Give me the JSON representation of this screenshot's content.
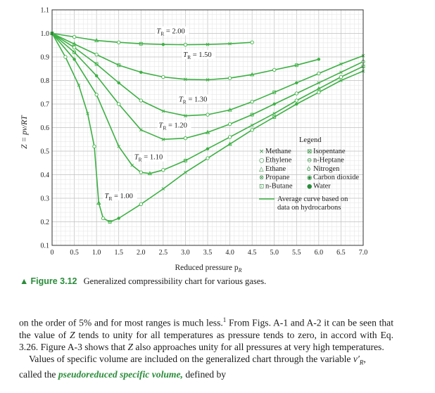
{
  "chart_data": {
    "type": "line",
    "title": "",
    "xlabel": "Reduced pressure p",
    "xlabel_sub": "R",
    "ylabel": "Z = pv/RT",
    "xlim": [
      0,
      7.0
    ],
    "ylim": [
      0.1,
      1.1
    ],
    "xticks": [
      "0",
      "0.5",
      "1.0",
      "1.5",
      "2.0",
      "2.5",
      "3.0",
      "3.5",
      "4.0",
      "4.5",
      "5.0",
      "5.5",
      "6.0",
      "6.5",
      "7.0"
    ],
    "yticks": [
      "0.1",
      "0.2",
      "0.3",
      "0.4",
      "0.5",
      "0.6",
      "0.7",
      "0.8",
      "0.9",
      "1.0",
      "1.1"
    ],
    "grid": true,
    "curve_color": "#3cb043",
    "series": [
      {
        "label": "T",
        "label_sub": "R",
        "label_value": " = 2.00",
        "x": [
          0,
          0.5,
          1.0,
          1.5,
          2.0,
          2.5,
          3.0,
          3.5,
          4.0,
          4.5
        ],
        "y": [
          1.0,
          0.985,
          0.97,
          0.962,
          0.956,
          0.953,
          0.952,
          0.953,
          0.956,
          0.962
        ]
      },
      {
        "label": "T",
        "label_sub": "R",
        "label_value": " = 1.50",
        "x": [
          0,
          0.5,
          1.0,
          1.5,
          2.0,
          2.5,
          3.0,
          3.5,
          4.0,
          4.5,
          5.0,
          5.5,
          6.0
        ],
        "y": [
          1.0,
          0.955,
          0.91,
          0.865,
          0.835,
          0.815,
          0.805,
          0.803,
          0.81,
          0.825,
          0.845,
          0.865,
          0.89
        ]
      },
      {
        "label": "T",
        "label_sub": "R",
        "label_value": " = 1.30",
        "x": [
          0,
          0.5,
          1.0,
          1.5,
          2.0,
          2.5,
          3.0,
          3.5,
          4.0,
          4.5,
          5.0,
          5.5,
          6.0,
          6.5,
          7.0
        ],
        "y": [
          1.0,
          0.94,
          0.87,
          0.79,
          0.715,
          0.67,
          0.65,
          0.655,
          0.675,
          0.71,
          0.75,
          0.79,
          0.83,
          0.87,
          0.905
        ]
      },
      {
        "label": "T",
        "label_sub": "R",
        "label_value": " = 1.20",
        "x": [
          0,
          0.5,
          1.0,
          1.5,
          2.0,
          2.5,
          3.0,
          3.5,
          4.0,
          4.5,
          5.0,
          5.5,
          6.0,
          6.5,
          7.0
        ],
        "y": [
          1.0,
          0.92,
          0.82,
          0.7,
          0.59,
          0.55,
          0.555,
          0.58,
          0.615,
          0.655,
          0.7,
          0.745,
          0.79,
          0.835,
          0.88
        ]
      },
      {
        "label": "T",
        "label_sub": "R",
        "label_value": " = 1.10",
        "x": [
          0,
          0.5,
          1.0,
          1.5,
          1.8,
          2.0,
          2.2,
          2.5,
          3.0,
          3.5,
          4.0,
          4.5,
          5.0,
          5.5,
          6.0,
          6.5,
          7.0
        ],
        "y": [
          1.0,
          0.89,
          0.74,
          0.52,
          0.44,
          0.41,
          0.405,
          0.42,
          0.46,
          0.51,
          0.56,
          0.61,
          0.66,
          0.715,
          0.765,
          0.815,
          0.86
        ]
      },
      {
        "label": "T",
        "label_sub": "R",
        "label_value": " = 1.00",
        "x": [
          0,
          0.3,
          0.6,
          0.8,
          0.95,
          1.05,
          1.15,
          1.3,
          1.5,
          2.0,
          2.5,
          3.0,
          3.5,
          4.0,
          4.5,
          5.0,
          5.5,
          6.0,
          6.5,
          7.0
        ],
        "y": [
          1.0,
          0.9,
          0.78,
          0.66,
          0.52,
          0.28,
          0.215,
          0.2,
          0.215,
          0.275,
          0.34,
          0.41,
          0.47,
          0.53,
          0.59,
          0.645,
          0.7,
          0.75,
          0.8,
          0.84
        ]
      }
    ],
    "legend": {
      "title": "Legend",
      "placement": "lower-right",
      "items": [
        {
          "symbol": "×",
          "label": "Methane"
        },
        {
          "symbol": "○",
          "label": "Ethylene"
        },
        {
          "symbol": "△",
          "label": "Ethane"
        },
        {
          "symbol": "⊗",
          "label": "Propane"
        },
        {
          "symbol": "⊡",
          "label": "n-Butane"
        },
        {
          "symbol": "⊠",
          "label": "Isopentane"
        },
        {
          "symbol": "⊖",
          "label": "n-Heptane"
        },
        {
          "symbol": "ȯ",
          "label": "Nitrogen"
        },
        {
          "symbol": "◉",
          "label": "Carbon dioxide"
        },
        {
          "symbol": "●",
          "label": "Water"
        }
      ],
      "line_label_1": "Average curve based on",
      "line_label_2": "data on hydrocarbons"
    }
  },
  "caption": {
    "marker": "▲",
    "figure_number": "Figure 3.12",
    "text": "Generalized compressibility chart for various gases."
  },
  "body": {
    "p1_a": "on the order of 5% and for most ranges is much less.",
    "p1_footnote": "1",
    "p1_b": " From Figs. A-1 and A-2 it can be seen that the value of ",
    "p1_z1": "Z",
    "p1_c": " tends to unity for all temperatures as pressure tends to zero, in accord with Eq. 3.26. Figure A-3 shows that ",
    "p1_z2": "Z",
    "p1_d": " also approaches unity for all pressures at very high temperatures.",
    "p2_a": "Values of specific volume are included on the generalized chart through the variable ",
    "p2_var": "v′",
    "p2_var_sub": "R",
    "p2_b": ",",
    "p2_c": " called the ",
    "p2_term": "pseudoreduced specific volume,",
    "p2_d": " defined by"
  }
}
